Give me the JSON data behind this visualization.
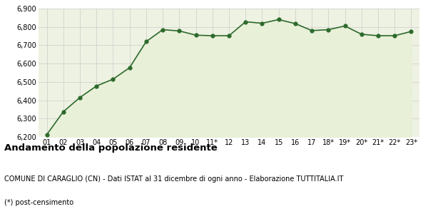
{
  "x_labels": [
    "01",
    "02",
    "03",
    "04",
    "05",
    "06",
    "07",
    "08",
    "09",
    "10",
    "11*",
    "12",
    "13",
    "14",
    "15",
    "16",
    "17",
    "18*",
    "19*",
    "20*",
    "21*",
    "22*",
    "23*"
  ],
  "y_values": [
    6213,
    6338,
    6415,
    6478,
    6515,
    6578,
    6720,
    6785,
    6778,
    6755,
    6752,
    6752,
    6828,
    6820,
    6840,
    6818,
    6780,
    6785,
    6805,
    6760,
    6752,
    6752,
    6775
  ],
  "ylim": [
    6200,
    6900
  ],
  "yticks": [
    6200,
    6300,
    6400,
    6500,
    6600,
    6700,
    6800,
    6900
  ],
  "line_color": "#2d6a2d",
  "fill_color": "#e8f0d8",
  "marker_color": "#2d6a2d",
  "bg_color": "#eef2e2",
  "grid_color": "#cccccc",
  "title": "Andamento della popolazione residente",
  "subtitle": "COMUNE DI CARAGLIO (CN) - Dati ISTAT al 31 dicembre di ogni anno - Elaborazione TUTTITALIA.IT",
  "footnote": "(*) post-censimento",
  "title_fontsize": 9.5,
  "subtitle_fontsize": 7,
  "footnote_fontsize": 7,
  "tick_fontsize": 7,
  "marker_size": 12
}
